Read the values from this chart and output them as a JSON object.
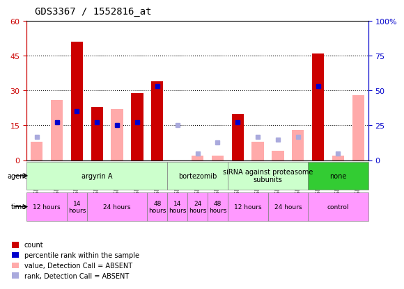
{
  "title": "GDS3367 / 1552816_at",
  "samples": [
    "GSM297801",
    "GSM297804",
    "GSM212658",
    "GSM212659",
    "GSM297802",
    "GSM297806",
    "GSM212660",
    "GSM212655",
    "GSM212656",
    "GSM212657",
    "GSM212662",
    "GSM297805",
    "GSM212663",
    "GSM297807",
    "GSM212654",
    "GSM212661",
    "GSM297803"
  ],
  "count_values": [
    null,
    null,
    51,
    23,
    null,
    29,
    34,
    null,
    null,
    null,
    20,
    null,
    null,
    null,
    46,
    null,
    null
  ],
  "count_absent": [
    8,
    null,
    null,
    null,
    null,
    null,
    null,
    null,
    null,
    null,
    null,
    null,
    null,
    null,
    null,
    null,
    null
  ],
  "value_absent": [
    8,
    26,
    null,
    22,
    22,
    null,
    24,
    null,
    2,
    2,
    null,
    8,
    4,
    13,
    null,
    2,
    28
  ],
  "rank_present": [
    null,
    27,
    35,
    27,
    25,
    27,
    53,
    null,
    null,
    null,
    27,
    null,
    null,
    null,
    53,
    null,
    null
  ],
  "rank_absent": [
    17,
    null,
    null,
    null,
    null,
    null,
    null,
    25,
    5,
    13,
    null,
    17,
    15,
    17,
    null,
    5,
    null
  ],
  "ylim_left": [
    0,
    60
  ],
  "ylim_right": [
    0,
    100
  ],
  "yticks_left": [
    0,
    15,
    30,
    45,
    60
  ],
  "yticks_right": [
    0,
    25,
    50,
    75,
    100
  ],
  "color_count_present": "#cc0000",
  "color_count_absent": "#ffaaaa",
  "color_rank_present": "#0000cc",
  "color_rank_absent": "#aaaadd",
  "agent_groups": [
    {
      "label": "argyrin A",
      "start": 0,
      "end": 7,
      "color": "#ccffcc"
    },
    {
      "label": "bortezomib",
      "start": 7,
      "end": 10,
      "color": "#ccffcc"
    },
    {
      "label": "siRNA against proteasome\nsubunits",
      "start": 10,
      "end": 14,
      "color": "#ccffcc"
    },
    {
      "label": "none",
      "start": 14,
      "end": 17,
      "color": "#33cc33"
    }
  ],
  "time_groups": [
    {
      "label": "12 hours",
      "start": 0,
      "end": 2,
      "color": "#ff99ff"
    },
    {
      "label": "14\nhours",
      "start": 2,
      "end": 3,
      "color": "#ff99ff"
    },
    {
      "label": "24 hours",
      "start": 3,
      "end": 6,
      "color": "#ff99ff"
    },
    {
      "label": "48\nhours",
      "start": 6,
      "end": 7,
      "color": "#ff99ff"
    },
    {
      "label": "14\nhours",
      "start": 7,
      "end": 8,
      "color": "#ff99ff"
    },
    {
      "label": "24\nhours",
      "start": 8,
      "end": 9,
      "color": "#ff99ff"
    },
    {
      "label": "48\nhours",
      "start": 9,
      "end": 10,
      "color": "#ff99ff"
    },
    {
      "label": "12 hours",
      "start": 10,
      "end": 12,
      "color": "#ff99ff"
    },
    {
      "label": "24 hours",
      "start": 12,
      "end": 14,
      "color": "#ff99ff"
    },
    {
      "label": "control",
      "start": 14,
      "end": 17,
      "color": "#ff99ff"
    }
  ],
  "bg_color": "#ffffff",
  "grid_color": "#000000",
  "axis_left_color": "#cc0000",
  "axis_right_color": "#0000cc"
}
